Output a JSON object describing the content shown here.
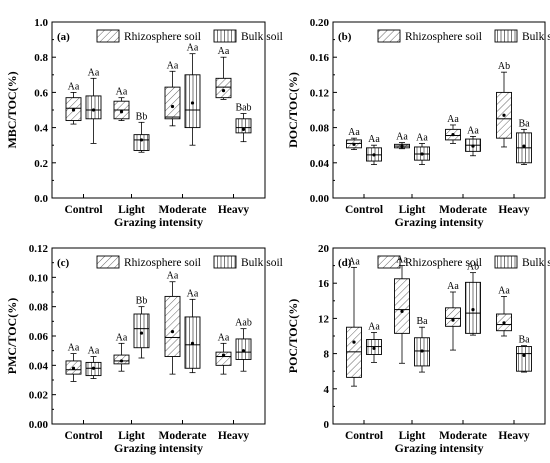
{
  "colors": {
    "axis": "#000000",
    "box_fill": "#ffffff",
    "hatch": "#555555"
  },
  "legend_labels": [
    "Rhizosphere soil",
    "Bulk soil"
  ],
  "chart_data": [
    {
      "panel": "(a)",
      "type": "box",
      "ylabel": "MBC/TOC(%)",
      "xlabel": "Grazing intensity",
      "categories": [
        "Control",
        "Light",
        "Moderate",
        "Heavy"
      ],
      "ylim": [
        0.0,
        1.0
      ],
      "yticks": [
        "0.0",
        "0.2",
        "0.4",
        "0.6",
        "0.8",
        "1.0"
      ],
      "legend": "top-right",
      "series": [
        {
          "name": "Rhizosphere soil",
          "boxes": [
            {
              "min": 0.42,
              "q1": 0.44,
              "median": 0.51,
              "q3": 0.57,
              "max": 0.6,
              "mean": 0.5,
              "label": "Aa"
            },
            {
              "min": 0.44,
              "q1": 0.45,
              "median": 0.5,
              "q3": 0.55,
              "max": 0.57,
              "mean": 0.49,
              "label": "Aa"
            },
            {
              "min": 0.41,
              "q1": 0.45,
              "median": 0.46,
              "q3": 0.63,
              "max": 0.72,
              "mean": 0.52,
              "label": "Aa"
            },
            {
              "min": 0.56,
              "q1": 0.57,
              "median": 0.63,
              "q3": 0.68,
              "max": 0.8,
              "mean": 0.61,
              "label": "Aa"
            }
          ]
        },
        {
          "name": "Bulk soil",
          "boxes": [
            {
              "min": 0.31,
              "q1": 0.45,
              "median": 0.5,
              "q3": 0.58,
              "max": 0.68,
              "mean": 0.5,
              "label": "Aa"
            },
            {
              "min": 0.26,
              "q1": 0.27,
              "median": 0.33,
              "q3": 0.36,
              "max": 0.43,
              "mean": 0.33,
              "label": "Bb"
            },
            {
              "min": 0.3,
              "q1": 0.4,
              "median": 0.5,
              "q3": 0.7,
              "max": 0.82,
              "mean": 0.54,
              "label": "Aa"
            },
            {
              "min": 0.32,
              "q1": 0.37,
              "median": 0.4,
              "q3": 0.45,
              "max": 0.48,
              "mean": 0.39,
              "label": "Bab"
            }
          ]
        }
      ]
    },
    {
      "panel": "(b)",
      "type": "box",
      "ylabel": "DOC/TOC(%)",
      "xlabel": "Grazing intensity",
      "categories": [
        "Control",
        "Light",
        "Moderate",
        "Heavy"
      ],
      "ylim": [
        0.0,
        0.2
      ],
      "yticks": [
        "0.00",
        "0.04",
        "0.08",
        "0.12",
        "0.16",
        "0.20"
      ],
      "legend": "top-right",
      "series": [
        {
          "name": "Rhizosphere soil",
          "boxes": [
            {
              "min": 0.055,
              "q1": 0.057,
              "median": 0.062,
              "q3": 0.066,
              "max": 0.068,
              "mean": 0.061,
              "label": "Aa"
            },
            {
              "min": 0.056,
              "q1": 0.057,
              "median": 0.059,
              "q3": 0.061,
              "max": 0.063,
              "mean": 0.059,
              "label": "Aa"
            },
            {
              "min": 0.062,
              "q1": 0.066,
              "median": 0.071,
              "q3": 0.078,
              "max": 0.083,
              "mean": 0.072,
              "label": "Aa"
            },
            {
              "min": 0.058,
              "q1": 0.068,
              "median": 0.09,
              "q3": 0.12,
              "max": 0.143,
              "mean": 0.094,
              "label": "Ab"
            }
          ]
        },
        {
          "name": "Bulk soil",
          "boxes": [
            {
              "min": 0.038,
              "q1": 0.042,
              "median": 0.049,
              "q3": 0.057,
              "max": 0.06,
              "mean": 0.049,
              "label": "Aa"
            },
            {
              "min": 0.038,
              "q1": 0.043,
              "median": 0.05,
              "q3": 0.058,
              "max": 0.062,
              "mean": 0.05,
              "label": "Aa"
            },
            {
              "min": 0.048,
              "q1": 0.053,
              "median": 0.06,
              "q3": 0.067,
              "max": 0.07,
              "mean": 0.059,
              "label": "Aa"
            },
            {
              "min": 0.038,
              "q1": 0.04,
              "median": 0.057,
              "q3": 0.074,
              "max": 0.078,
              "mean": 0.059,
              "label": "Ba"
            }
          ]
        }
      ]
    },
    {
      "panel": "(c)",
      "type": "box",
      "ylabel": "PMC/TOC(%)",
      "xlabel": "Grazing intensity",
      "categories": [
        "Control",
        "Light",
        "Moderate",
        "Heavy"
      ],
      "ylim": [
        0.0,
        0.12
      ],
      "yticks": [
        "0.00",
        "0.02",
        "0.04",
        "0.06",
        "0.08",
        "0.10",
        "0.12"
      ],
      "legend": "top-right",
      "series": [
        {
          "name": "Rhizosphere soil",
          "boxes": [
            {
              "min": 0.029,
              "q1": 0.034,
              "median": 0.037,
              "q3": 0.043,
              "max": 0.048,
              "mean": 0.038,
              "label": "Aa"
            },
            {
              "min": 0.036,
              "q1": 0.041,
              "median": 0.043,
              "q3": 0.047,
              "max": 0.055,
              "mean": 0.043,
              "label": "Aa"
            },
            {
              "min": 0.034,
              "q1": 0.046,
              "median": 0.059,
              "q3": 0.087,
              "max": 0.097,
              "mean": 0.063,
              "label": "Aa"
            },
            {
              "min": 0.034,
              "q1": 0.04,
              "median": 0.046,
              "q3": 0.049,
              "max": 0.055,
              "mean": 0.047,
              "label": "Aa"
            }
          ]
        },
        {
          "name": "Bulk soil",
          "boxes": [
            {
              "min": 0.031,
              "q1": 0.033,
              "median": 0.038,
              "q3": 0.042,
              "max": 0.046,
              "mean": 0.038,
              "label": "Aa"
            },
            {
              "min": 0.045,
              "q1": 0.052,
              "median": 0.065,
              "q3": 0.075,
              "max": 0.08,
              "mean": 0.062,
              "label": "Bb"
            },
            {
              "min": 0.035,
              "q1": 0.038,
              "median": 0.054,
              "q3": 0.073,
              "max": 0.085,
              "mean": 0.055,
              "label": "Aa"
            },
            {
              "min": 0.036,
              "q1": 0.044,
              "median": 0.049,
              "q3": 0.058,
              "max": 0.065,
              "mean": 0.05,
              "label": "Aab"
            }
          ]
        }
      ]
    },
    {
      "panel": "(d)",
      "type": "box",
      "ylabel": "POC/TOC(%)",
      "xlabel": "Grazing intensity",
      "categories": [
        "Control",
        "Light",
        "Moderate",
        "Heavy"
      ],
      "ylim": [
        0,
        20
      ],
      "yticks": [
        "0",
        "4",
        "8",
        "12",
        "16",
        "20"
      ],
      "legend": "top-right",
      "series": [
        {
          "name": "Rhizosphere soil",
          "boxes": [
            {
              "min": 4.3,
              "q1": 5.3,
              "median": 8.2,
              "q3": 11.0,
              "max": 17.8,
              "mean": 9.3,
              "label": "Aa"
            },
            {
              "min": 6.9,
              "q1": 10.3,
              "median": 13.0,
              "q3": 16.5,
              "max": 18.0,
              "mean": 12.8,
              "label": "Aa"
            },
            {
              "min": 8.4,
              "q1": 11.1,
              "median": 12.0,
              "q3": 13.2,
              "max": 15.0,
              "mean": 11.8,
              "label": "Aa"
            },
            {
              "min": 10.0,
              "q1": 10.6,
              "median": 11.3,
              "q3": 12.5,
              "max": 14.5,
              "mean": 11.5,
              "label": "Aa"
            }
          ]
        },
        {
          "name": "Bulk soil",
          "boxes": [
            {
              "min": 7.0,
              "q1": 7.9,
              "median": 8.8,
              "q3": 9.6,
              "max": 10.4,
              "mean": 8.6,
              "label": "Aa"
            },
            {
              "min": 5.9,
              "q1": 6.6,
              "median": 8.3,
              "q3": 9.8,
              "max": 11.0,
              "mean": 8.3,
              "label": "Ba"
            },
            {
              "min": 10.1,
              "q1": 10.3,
              "median": 12.6,
              "q3": 16.1,
              "max": 17.2,
              "mean": 13.0,
              "label": "Ab"
            },
            {
              "min": 5.9,
              "q1": 6.0,
              "median": 8.0,
              "q3": 8.8,
              "max": 8.9,
              "mean": 7.8,
              "label": "Ba"
            }
          ]
        }
      ]
    }
  ]
}
